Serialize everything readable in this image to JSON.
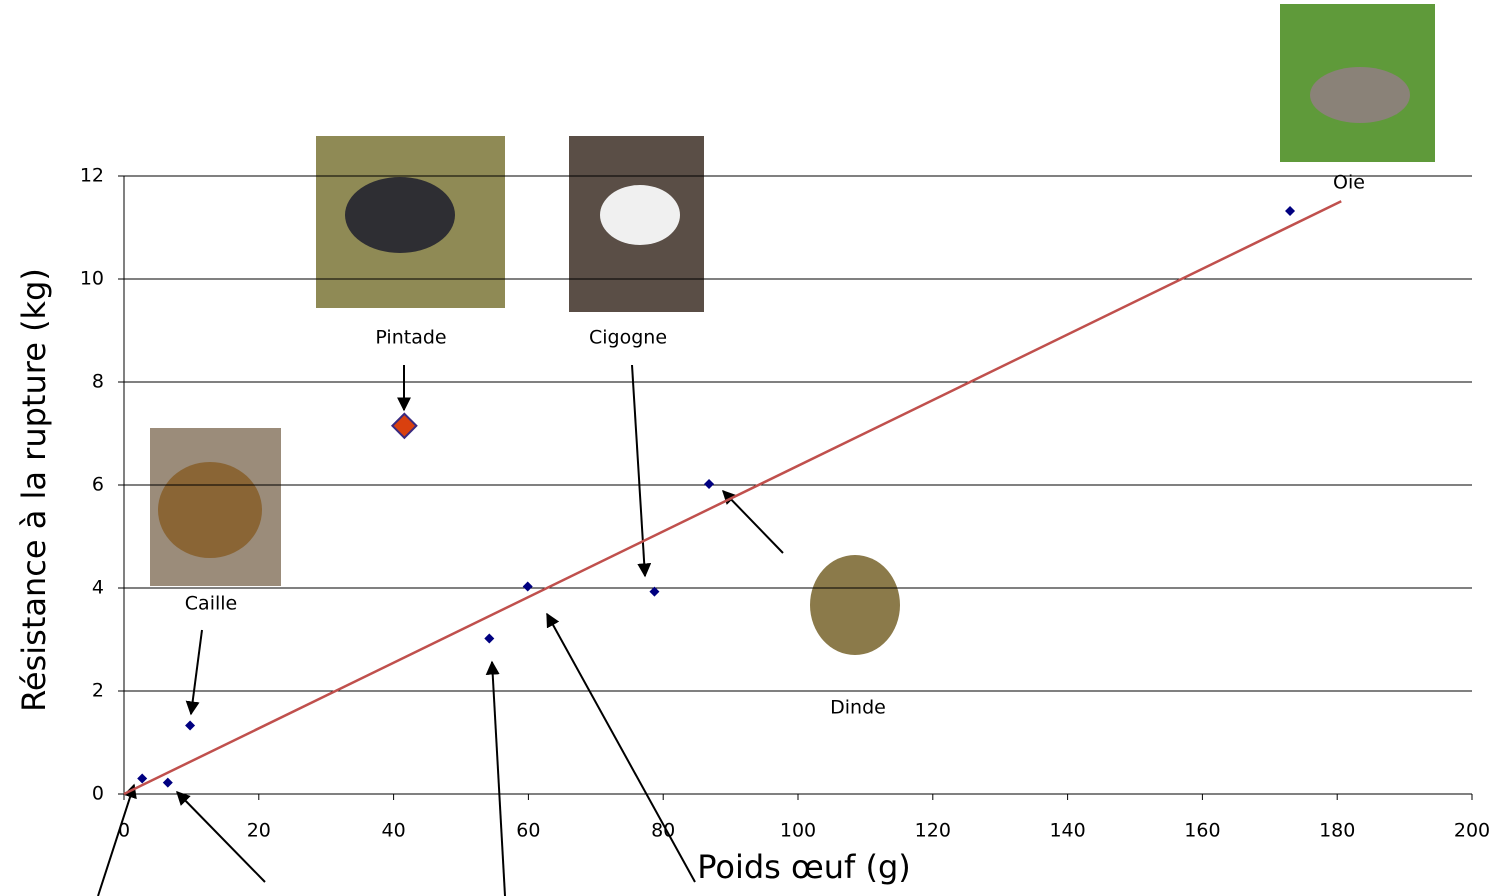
{
  "chart_data": {
    "type": "scatter",
    "x_label": "Poids œuf (g)",
    "y_label": "Résistance à la rupture (kg)",
    "x": [
      2.7,
      6.5,
      9.8,
      41.6,
      54.2,
      59.9,
      78.7,
      86.8,
      173
    ],
    "values": [
      0.3,
      0.22,
      1.33,
      7.15,
      3.02,
      4.03,
      3.93,
      6.02,
      11.32
    ],
    "color": "#000080",
    "highlight": {
      "index": 3,
      "color": "#d9400f"
    },
    "trendline": {
      "x": [
        0,
        180.6
      ],
      "values": [
        0,
        11.51
      ],
      "color": "#c0504d"
    },
    "annotations": [
      "Pintade",
      "Cigogne",
      "Caille",
      "Dinde",
      "Oie"
    ],
    "xlim": [
      0,
      200
    ],
    "xticks": [
      0,
      20,
      40,
      60,
      80,
      100,
      120,
      140,
      160,
      180,
      200
    ],
    "ylim": [
      0,
      12
    ],
    "yticks": [
      0,
      2,
      4,
      6,
      8,
      10,
      12
    ],
    "grid": true
  }
}
